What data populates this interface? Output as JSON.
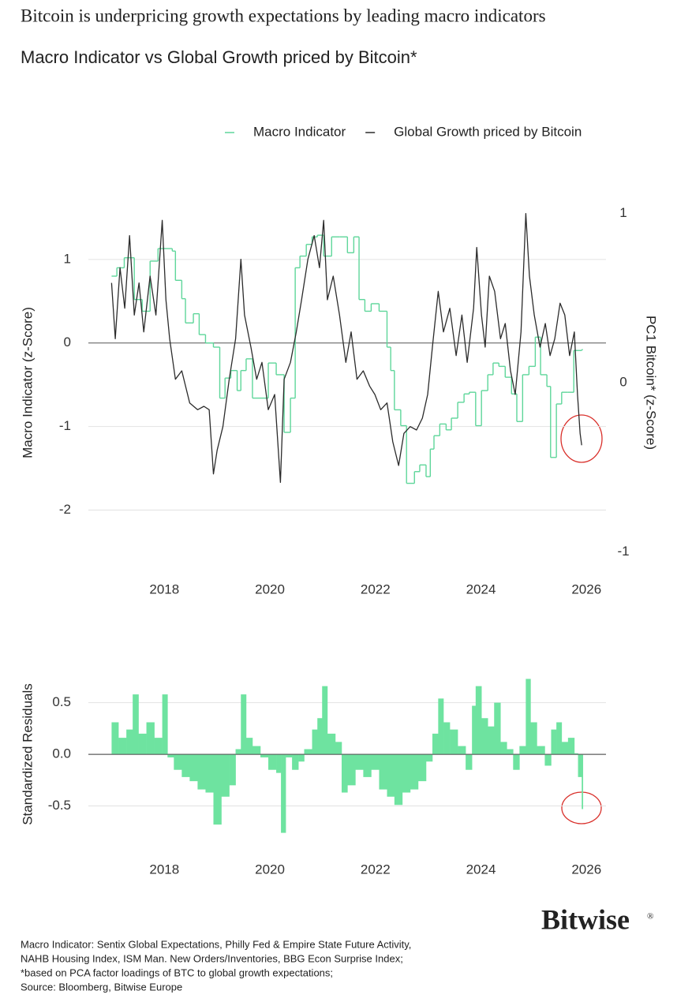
{
  "header": {
    "title": "Bitcoin is underpricing growth expectations by leading macro indicators"
  },
  "chart_data": [
    {
      "type": "line",
      "title": "Macro Indicator vs Global Growth priced by Bitcoin*",
      "ylabel": "Macro Indicator (z-Score)",
      "y2label": "PC1 Bitcoin* (z-Score)",
      "legend": "top-right",
      "grid": true,
      "xlim": [
        2016.56,
        2026.37
      ],
      "xticks": [
        2018,
        2020,
        2022,
        2024,
        2026
      ],
      "ylim": [
        -2.6,
        1.65
      ],
      "yticks": [
        -2,
        -1,
        0,
        1
      ],
      "y2lim": [
        -1.05,
        1.05
      ],
      "y2ticks": [
        -1,
        0,
        1
      ],
      "series": [
        {
          "name": "Macro Indicator",
          "color": "#5ed69a",
          "step": true,
          "x": [
            2017.0,
            2017.1,
            2017.24,
            2017.43,
            2017.58,
            2017.73,
            2017.88,
            2018.15,
            2018.21,
            2018.33,
            2018.4,
            2018.55,
            2018.66,
            2018.78,
            2018.93,
            2019.05,
            2019.15,
            2019.26,
            2019.38,
            2019.45,
            2019.55,
            2019.67,
            2019.82,
            2019.97,
            2020.12,
            2020.27,
            2020.39,
            2020.48,
            2020.57,
            2020.69,
            2020.8,
            2020.9,
            2021.02,
            2021.17,
            2021.32,
            2021.47,
            2021.59,
            2021.69,
            2021.8,
            2021.92,
            2022.07,
            2022.22,
            2022.29,
            2022.36,
            2022.48,
            2022.59,
            2022.74,
            2022.84,
            2022.96,
            2023.04,
            2023.11,
            2023.22,
            2023.34,
            2023.44,
            2023.56,
            2023.68,
            2023.78,
            2023.9,
            2024.01,
            2024.13,
            2024.23,
            2024.34,
            2024.46,
            2024.58,
            2024.68,
            2024.79,
            2024.91,
            2025.03,
            2025.13,
            2025.25,
            2025.32,
            2025.43,
            2025.53,
            2025.65,
            2025.76,
            2025.91
          ],
          "values": [
            0.8,
            0.9,
            1.02,
            0.52,
            0.38,
            0.98,
            1.13,
            1.1,
            0.75,
            0.53,
            0.24,
            0.35,
            0.1,
            0.0,
            -0.05,
            -0.66,
            -0.42,
            -0.33,
            -0.57,
            -0.33,
            -0.19,
            -0.66,
            -0.66,
            -0.24,
            -0.38,
            -1.07,
            -0.66,
            0.9,
            1.04,
            1.18,
            1.27,
            1.29,
            1.04,
            1.27,
            1.27,
            1.08,
            1.27,
            0.52,
            0.38,
            0.47,
            0.38,
            -0.05,
            -0.33,
            -0.8,
            -0.99,
            -1.68,
            -1.54,
            -1.46,
            -1.6,
            -1.27,
            -1.11,
            -0.97,
            -1.04,
            -0.9,
            -0.71,
            -0.61,
            -0.59,
            -0.99,
            -0.57,
            -0.38,
            -0.24,
            -0.28,
            -0.41,
            -0.61,
            -0.94,
            -0.38,
            -0.28,
            0.07,
            -0.38,
            -0.52,
            -1.37,
            -0.73,
            -0.59,
            -0.59,
            -0.09,
            -0.08
          ]
        },
        {
          "name": "Global Growth priced by Bitcoin",
          "color": "#2b2b2b",
          "axis": "y2",
          "x": [
            2017.0,
            2017.07,
            2017.16,
            2017.25,
            2017.34,
            2017.43,
            2017.52,
            2017.61,
            2017.73,
            2017.84,
            2017.96,
            2018.03,
            2018.1,
            2018.21,
            2018.33,
            2018.48,
            2018.63,
            2018.75,
            2018.85,
            2018.93,
            2019.0,
            2019.11,
            2019.23,
            2019.35,
            2019.45,
            2019.52,
            2019.64,
            2019.75,
            2019.85,
            2019.97,
            2020.09,
            2020.2,
            2020.27,
            2020.39,
            2020.5,
            2020.6,
            2020.72,
            2020.84,
            2020.94,
            2021.02,
            2021.09,
            2021.2,
            2021.32,
            2021.44,
            2021.54,
            2021.65,
            2021.77,
            2021.89,
            2021.99,
            2022.1,
            2022.22,
            2022.33,
            2022.44,
            2022.54,
            2022.66,
            2022.78,
            2022.89,
            2022.99,
            2023.08,
            2023.19,
            2023.29,
            2023.41,
            2023.53,
            2023.64,
            2023.74,
            2023.86,
            2023.92,
            2024.01,
            2024.08,
            2024.16,
            2024.26,
            2024.37,
            2024.46,
            2024.56,
            2024.65,
            2024.76,
            2024.85,
            2024.92,
            2025.01,
            2025.12,
            2025.22,
            2025.31,
            2025.4,
            2025.5,
            2025.59,
            2025.68,
            2025.77,
            2025.83,
            2025.88,
            2025.91
          ],
          "values": [
            0.59,
            0.26,
            0.68,
            0.44,
            0.87,
            0.4,
            0.59,
            0.3,
            0.63,
            0.4,
            0.96,
            0.49,
            0.26,
            0.02,
            0.07,
            -0.12,
            -0.16,
            -0.14,
            -0.16,
            -0.54,
            -0.4,
            -0.26,
            0.02,
            0.26,
            0.73,
            0.4,
            0.21,
            0.02,
            0.12,
            -0.16,
            -0.07,
            -0.59,
            0.02,
            0.12,
            0.3,
            0.49,
            0.73,
            0.87,
            0.68,
            0.96,
            0.49,
            0.63,
            0.4,
            0.12,
            0.3,
            0.02,
            0.07,
            -0.02,
            -0.07,
            -0.16,
            -0.12,
            -0.35,
            -0.49,
            -0.3,
            -0.26,
            -0.28,
            -0.21,
            -0.07,
            0.21,
            0.54,
            0.3,
            0.44,
            0.16,
            0.4,
            0.12,
            0.44,
            0.8,
            0.4,
            0.21,
            0.63,
            0.54,
            0.26,
            0.35,
            0.07,
            -0.07,
            0.3,
            1.0,
            0.63,
            0.4,
            0.21,
            0.35,
            0.16,
            0.26,
            0.47,
            0.4,
            0.16,
            0.3,
            -0.07,
            -0.3,
            -0.37
          ]
        }
      ]
    },
    {
      "type": "area",
      "ylabel": "Standardized Residuals",
      "color": "#6ee3a0",
      "grid": true,
      "xlim": [
        2016.56,
        2026.37
      ],
      "xticks": [
        2018,
        2020,
        2022,
        2024,
        2026
      ],
      "ylim": [
        -0.87,
        0.81
      ],
      "yticks": [
        0.5,
        {
          "value": 0,
          "label": "0.0"
        },
        -0.5
      ],
      "x": [
        2017.0,
        2017.13,
        2017.28,
        2017.4,
        2017.51,
        2017.66,
        2017.81,
        2017.96,
        2018.06,
        2018.18,
        2018.33,
        2018.48,
        2018.63,
        2018.78,
        2018.93,
        2019.08,
        2019.23,
        2019.35,
        2019.45,
        2019.55,
        2019.67,
        2019.82,
        2019.97,
        2020.12,
        2020.21,
        2020.3,
        2020.42,
        2020.54,
        2020.65,
        2020.8,
        2020.9,
        2020.99,
        2021.09,
        2021.24,
        2021.36,
        2021.47,
        2021.62,
        2021.77,
        2021.92,
        2022.07,
        2022.22,
        2022.36,
        2022.51,
        2022.66,
        2022.81,
        2022.96,
        2023.08,
        2023.19,
        2023.29,
        2023.41,
        2023.56,
        2023.71,
        2023.83,
        2023.9,
        2024.01,
        2024.13,
        2024.25,
        2024.37,
        2024.49,
        2024.61,
        2024.73,
        2024.85,
        2024.94,
        2025.06,
        2025.21,
        2025.33,
        2025.43,
        2025.53,
        2025.65,
        2025.77,
        2025.84,
        2025.91
      ],
      "values": [
        0.31,
        0.16,
        0.24,
        0.58,
        0.2,
        0.31,
        0.16,
        0.58,
        -0.03,
        -0.15,
        -0.22,
        -0.26,
        -0.34,
        -0.37,
        -0.68,
        -0.41,
        -0.3,
        0.05,
        0.58,
        0.16,
        0.08,
        -0.03,
        -0.15,
        -0.18,
        -0.76,
        -0.03,
        -0.15,
        -0.07,
        0.05,
        0.24,
        0.35,
        0.66,
        0.2,
        0.12,
        -0.37,
        -0.3,
        -0.15,
        -0.22,
        -0.15,
        -0.34,
        -0.41,
        -0.49,
        -0.37,
        -0.34,
        -0.26,
        -0.07,
        0.2,
        0.54,
        0.31,
        0.24,
        0.08,
        -0.15,
        0.47,
        0.66,
        0.35,
        0.27,
        0.5,
        0.12,
        0.05,
        -0.15,
        0.08,
        0.73,
        0.31,
        0.08,
        -0.11,
        0.24,
        0.31,
        0.12,
        0.16,
        0.01,
        -0.22,
        -0.53
      ]
    }
  ],
  "footer": {
    "logo": "Bitwise",
    "logo_mark": "®",
    "notes": [
      "Macro Indicator: Sentix Global Expectations, Philly Fed & Empire State Future Activity,",
      "NAHB Housing Index, ISM Man. New Orders/Inventories, BBG Econ Surprise Index;",
      "*based on PCA factor loadings of BTC to global growth expectations;",
      "Source: Bloomberg, Bitwise Europe"
    ]
  }
}
